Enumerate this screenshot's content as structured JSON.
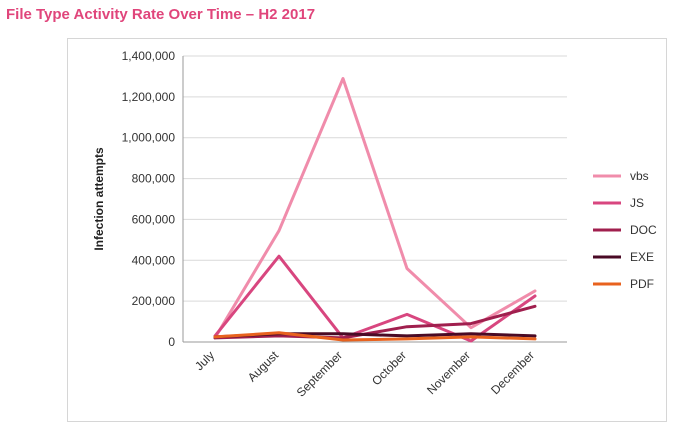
{
  "page_title": "File Type Activity Rate Over Time – H2 2017",
  "chart_data": {
    "type": "line",
    "title": "File Type Activity Rate Over Time – H2 2017",
    "xlabel": "",
    "ylabel": "Infection attempts",
    "ylim": [
      0,
      1400000
    ],
    "yticks": [
      0,
      200000,
      400000,
      600000,
      800000,
      1000000,
      1200000,
      1400000
    ],
    "ytick_labels": [
      "0",
      "200,000",
      "400,000",
      "600,000",
      "800,000",
      "1,000,000",
      "1,200,000",
      "1,400,000"
    ],
    "categories": [
      "July",
      "August",
      "September",
      "October",
      "November",
      "December"
    ],
    "grid": true,
    "legend_position": "right",
    "series": [
      {
        "name": "vbs",
        "color": "#f08cab",
        "values": [
          20000,
          545000,
          1290000,
          360000,
          70000,
          250000
        ]
      },
      {
        "name": "JS",
        "color": "#d8467f",
        "values": [
          30000,
          420000,
          20000,
          135000,
          5000,
          225000
        ]
      },
      {
        "name": "DOC",
        "color": "#a01f4e",
        "values": [
          20000,
          30000,
          20000,
          75000,
          90000,
          175000
        ]
      },
      {
        "name": "EXE",
        "color": "#4a0a25",
        "values": [
          25000,
          40000,
          40000,
          30000,
          40000,
          30000
        ]
      },
      {
        "name": "PDF",
        "color": "#e8621e",
        "values": [
          25000,
          45000,
          10000,
          15000,
          25000,
          15000
        ]
      }
    ]
  }
}
